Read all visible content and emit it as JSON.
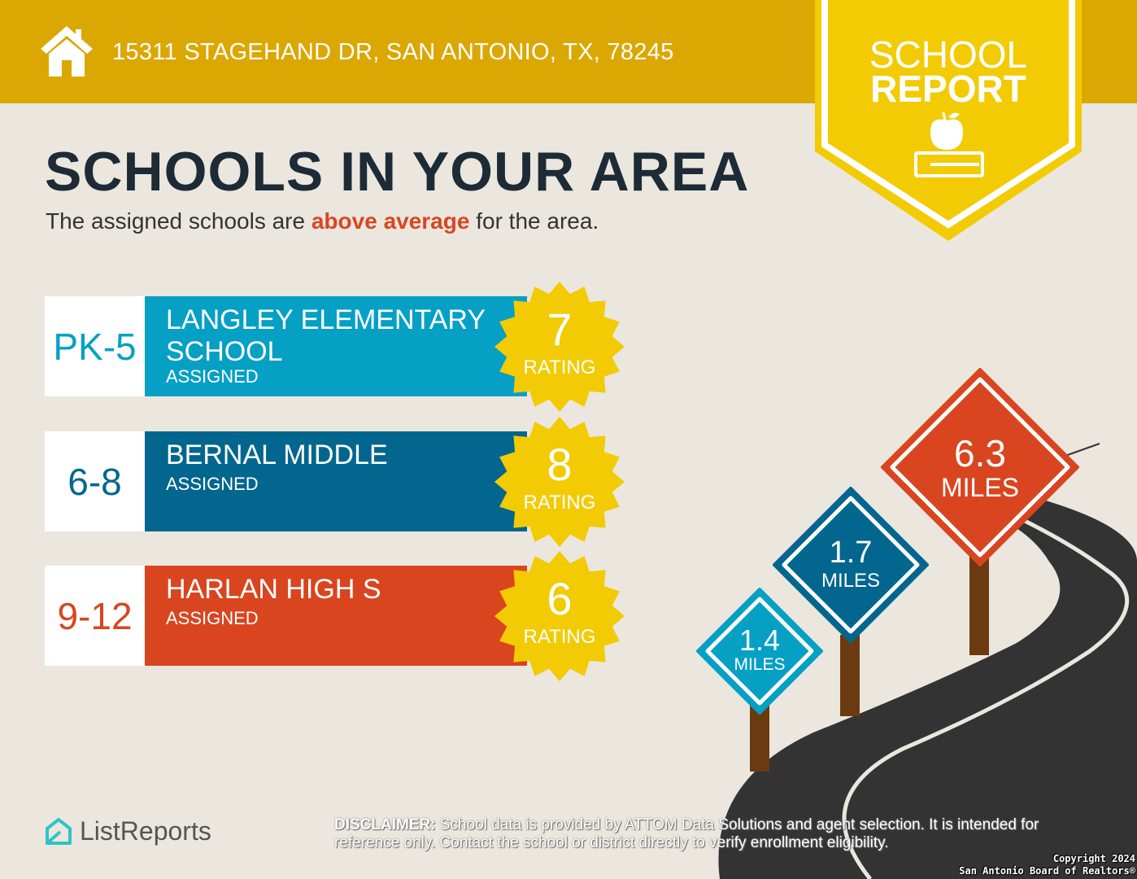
{
  "header": {
    "address": "15311 STAGEHAND DR, SAN ANTONIO, TX, 78245",
    "icon": "house-icon"
  },
  "badge": {
    "line1": "SCHOOL",
    "line2": "REPORT",
    "icon": "apple-book-icon"
  },
  "title": "SCHOOLS IN YOUR AREA",
  "subtitle": {
    "before": "The assigned schools are ",
    "highlight": "above average",
    "after": " for the area."
  },
  "schools": [
    {
      "grade": "PK-5",
      "name": "LANGLEY ELEMENTARY SCHOOL",
      "status": "ASSIGNED",
      "rating": "7",
      "rating_label": "RATING",
      "color": "#06a0c5",
      "grade_color": "#06a0c5",
      "distance": "1.4",
      "unit": "MILES"
    },
    {
      "grade": "6-8",
      "name": "BERNAL MIDDLE",
      "status": "ASSIGNED",
      "rating": "8",
      "rating_label": "RATING",
      "color": "#03668e",
      "grade_color": "#03668e",
      "distance": "1.7",
      "unit": "MILES"
    },
    {
      "grade": "9-12",
      "name": "HARLAN HIGH S",
      "status": "ASSIGNED",
      "rating": "6",
      "rating_label": "RATING",
      "color": "#d9451f",
      "grade_color": "#d9451f",
      "distance": "6.3",
      "unit": "MILES"
    }
  ],
  "footer": {
    "logo": "ListReports",
    "disclaimer_label": "DISCLAIMER:",
    "disclaimer": " School data is provided by ATTOM Data Solutions and agent selection. It is intended for reference only. Contact the school or district directly to verify enrollment eligibility.",
    "copyright1": "Copyright 2024",
    "copyright2": "San Antonio Board of Realtors®"
  }
}
